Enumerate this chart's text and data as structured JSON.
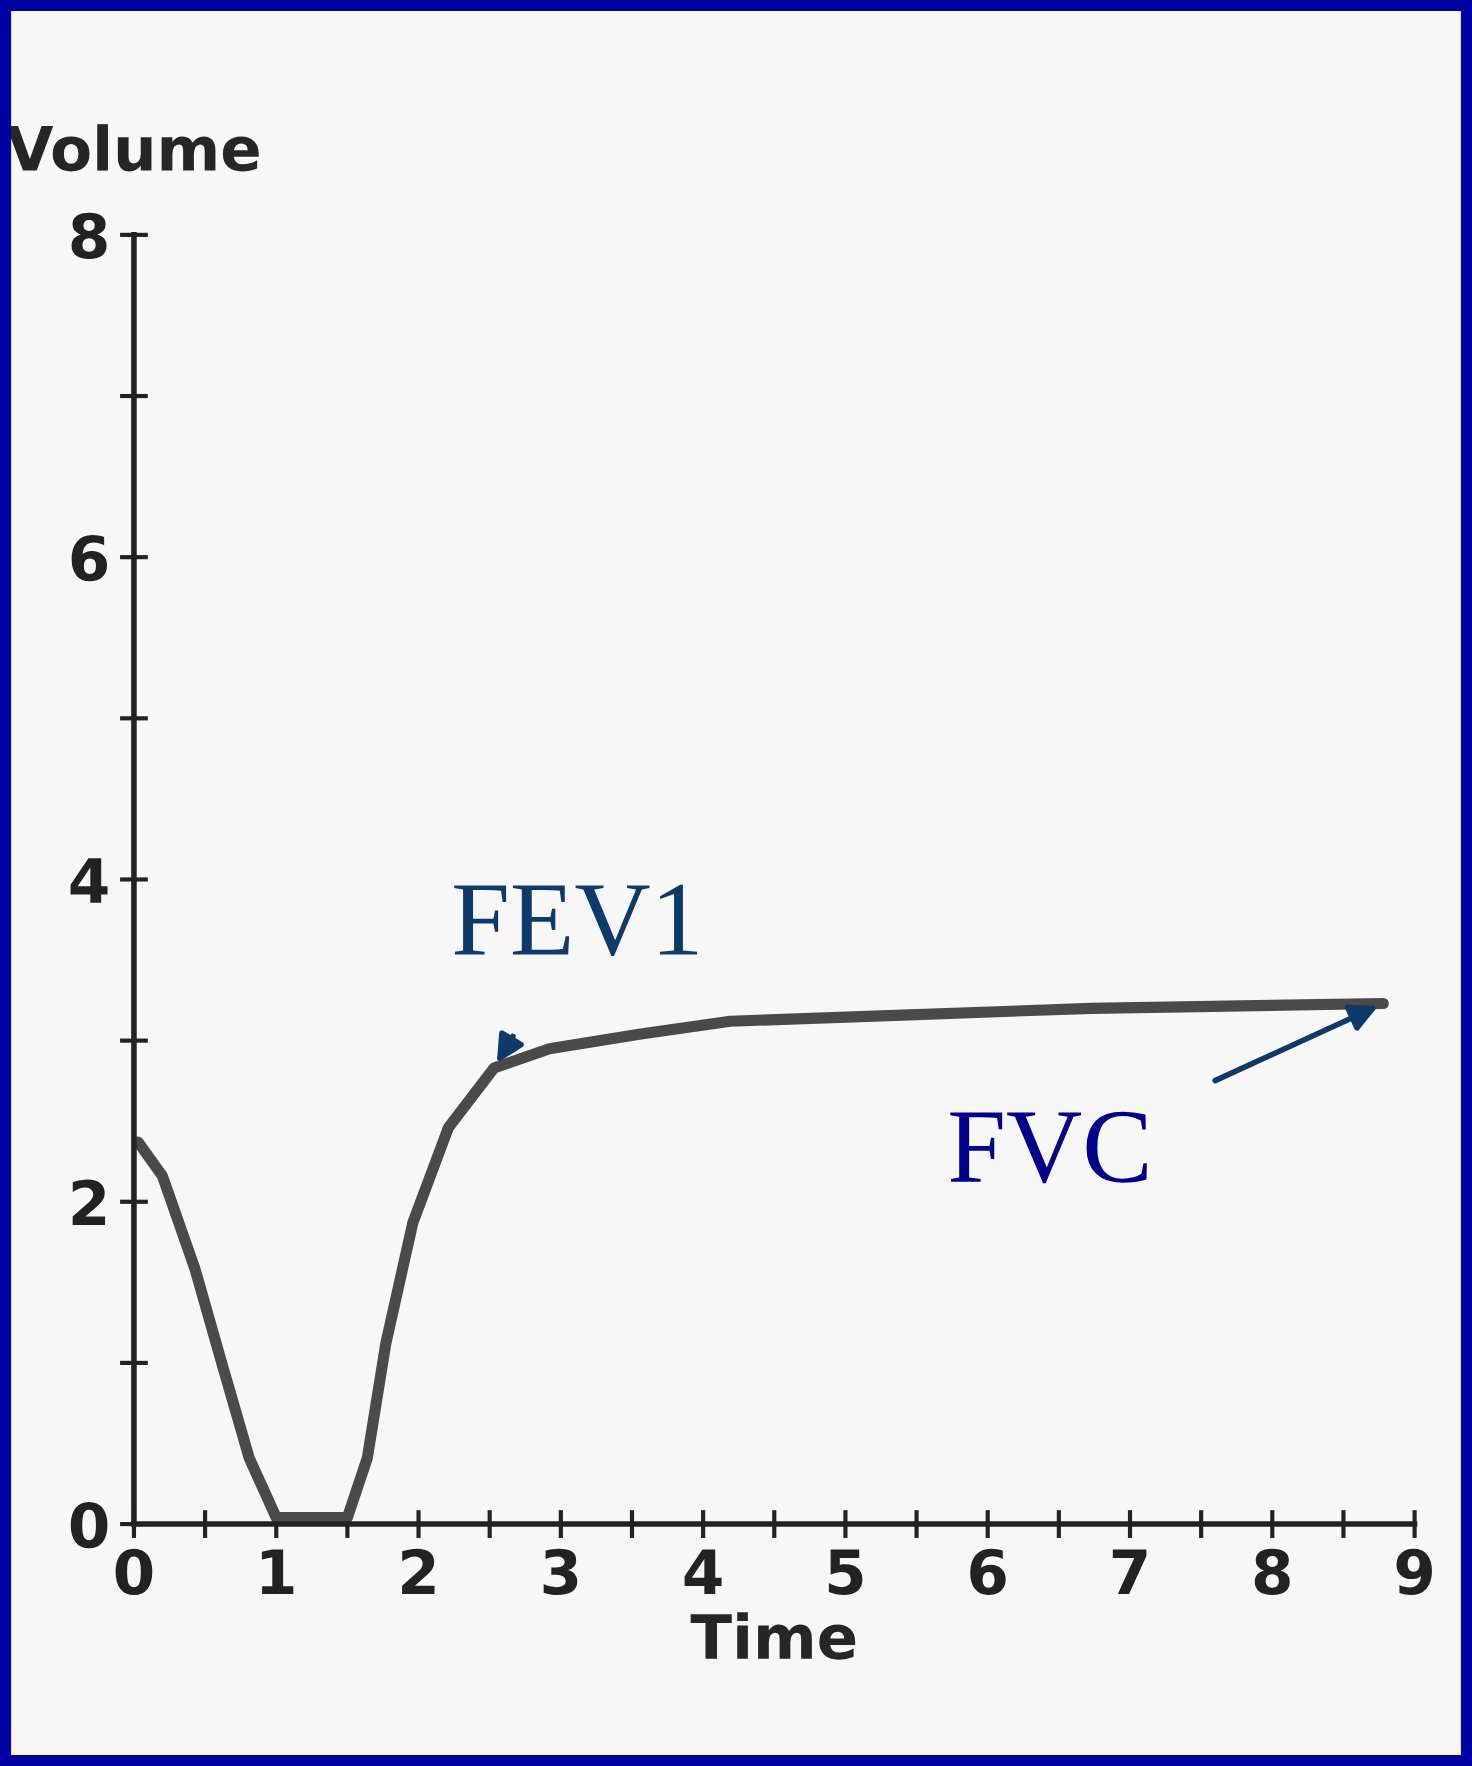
{
  "chart_data": {
    "type": "line",
    "xlabel": "Time",
    "ylabel": "Volume",
    "x": [
      0.03,
      0.2,
      0.43,
      0.62,
      0.81,
      1.0,
      1.5,
      1.64,
      1.77,
      1.96,
      2.21,
      2.53,
      2.92,
      3.55,
      4.19,
      5.45,
      6.73,
      8.78
    ],
    "series": [
      {
        "color": "#4a4a4a",
        "values": [
          2.37,
          2.16,
          1.58,
          0.99,
          0.41,
          0.04,
          0.04,
          0.41,
          1.12,
          1.87,
          2.46,
          2.83,
          2.95,
          3.04,
          3.12,
          3.16,
          3.2,
          3.23
        ]
      }
    ],
    "xlim": [
      0,
      9
    ],
    "ylim": [
      0,
      8
    ],
    "xticks": [
      0,
      {
        "value": 0.5,
        "label": null
      },
      1,
      {
        "value": 1.5,
        "label": null
      },
      2,
      {
        "value": 2.5,
        "label": null
      },
      3,
      {
        "value": 3.5,
        "label": null
      },
      4,
      {
        "value": 4.5,
        "label": null
      },
      5,
      {
        "value": 5.5,
        "label": null
      },
      6,
      {
        "value": 6.5,
        "label": null
      },
      7,
      {
        "value": 7.5,
        "label": null
      },
      8,
      {
        "value": 8.5,
        "label": null
      },
      9
    ],
    "yticks": [
      0,
      {
        "value": 1,
        "label": null
      },
      2,
      {
        "value": 3,
        "label": null
      },
      4,
      {
        "value": 5,
        "label": null
      },
      6,
      {
        "value": 7,
        "label": null
      },
      8
    ],
    "annotations": [
      {
        "text": "FEV1",
        "x": 2.53,
        "y": 2.83
      },
      {
        "text": "FVC",
        "x": 8.78,
        "y": 3.23
      }
    ],
    "grid": false,
    "legend": false,
    "marker": "none",
    "line_style": "solid"
  }
}
